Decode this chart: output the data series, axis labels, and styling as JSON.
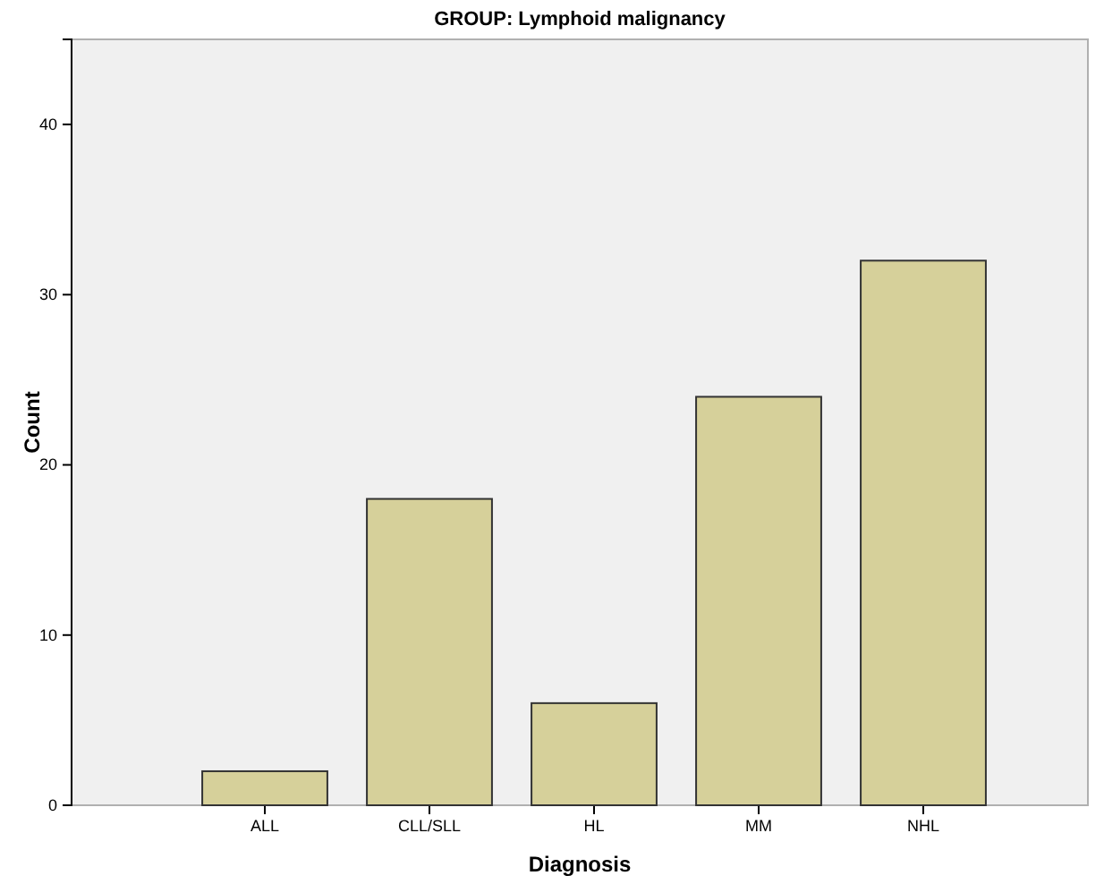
{
  "chart_data": {
    "type": "bar",
    "title": "GROUP: Lymphoid malignancy",
    "xlabel": "Diagnosis",
    "ylabel": "Count",
    "categories": [
      "ALL",
      "CLL/SLL",
      "HL",
      "MM",
      "NHL"
    ],
    "values": [
      2,
      18,
      6,
      24,
      32
    ],
    "color": "#d6d09a",
    "ylim": [
      0,
      45
    ],
    "yticks": [
      0,
      10,
      20,
      30,
      40
    ],
    "grid": false
  }
}
